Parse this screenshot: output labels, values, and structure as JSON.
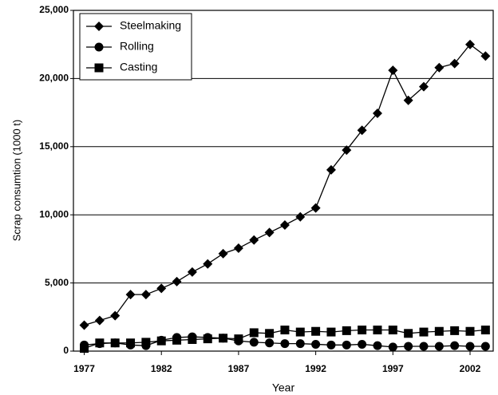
{
  "chart_data": {
    "type": "line",
    "y_label": "Scrap consumtion (1000 t)",
    "x_label": "Year",
    "x": [
      1977,
      1978,
      1979,
      1980,
      1981,
      1982,
      1983,
      1984,
      1985,
      1986,
      1987,
      1988,
      1989,
      1990,
      1991,
      1992,
      1993,
      1994,
      1995,
      1996,
      1997,
      1998,
      1999,
      2000,
      2001,
      2002,
      2003
    ],
    "series": [
      {
        "name": "Steelmaking",
        "color": "#000000",
        "marker": "diamond",
        "values": [
          1900,
          2250,
          2600,
          4150,
          4150,
          4600,
          5100,
          5800,
          6400,
          7150,
          7550,
          8150,
          8700,
          9250,
          9850,
          10500,
          13300,
          14750,
          16200,
          17450,
          20600,
          18400,
          19400,
          20800,
          21100,
          22500,
          21650
        ]
      },
      {
        "name": "Rolling",
        "color": "#000000",
        "marker": "circle",
        "values": [
          450,
          550,
          600,
          450,
          400,
          800,
          1000,
          1050,
          1000,
          950,
          750,
          650,
          600,
          550,
          550,
          500,
          450,
          450,
          500,
          400,
          300,
          350,
          350,
          350,
          400,
          350,
          350
        ]
      },
      {
        "name": "Casting",
        "color": "#000000",
        "marker": "square",
        "values": [
          200,
          600,
          600,
          600,
          650,
          750,
          800,
          850,
          900,
          950,
          900,
          1350,
          1300,
          1550,
          1400,
          1450,
          1400,
          1500,
          1550,
          1550,
          1550,
          1300,
          1400,
          1450,
          1500,
          1450,
          1550
        ]
      }
    ],
    "xlim": [
      1976.3,
      2003.5
    ],
    "xticks": [
      1977,
      1982,
      1987,
      1992,
      1997,
      2002
    ],
    "ylim": [
      0,
      25000
    ],
    "yticks": [
      0,
      {
        "value": 5000,
        "label": "5,000"
      },
      {
        "value": 10000,
        "label": "10,000"
      },
      {
        "value": 15000,
        "label": "15,000"
      },
      {
        "value": 20000,
        "label": "20,000"
      },
      {
        "value": 25000,
        "label": "25,000"
      }
    ],
    "grid": true,
    "legend": "upper left"
  }
}
